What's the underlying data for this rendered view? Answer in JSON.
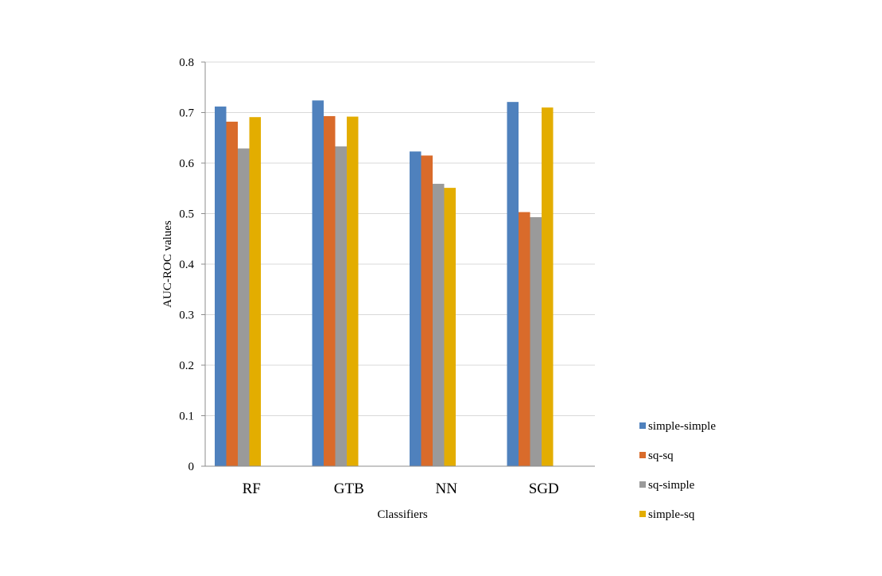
{
  "chart_data": {
    "type": "bar",
    "categories": [
      "RF",
      "GTB",
      "NN",
      "SGD"
    ],
    "series": [
      {
        "name": "simple-simple",
        "color": "#4f81bd",
        "values": [
          0.712,
          0.724,
          0.623,
          0.721
        ]
      },
      {
        "name": "sq-sq",
        "color": "#d96b2b",
        "values": [
          0.682,
          0.693,
          0.615,
          0.503
        ]
      },
      {
        "name": "sq-simple",
        "color": "#9a9a9a",
        "values": [
          0.629,
          0.633,
          0.559,
          0.493
        ]
      },
      {
        "name": "simple-sq",
        "color": "#e3ad00",
        "values": [
          0.691,
          0.692,
          0.551,
          0.71
        ]
      }
    ],
    "xlabel": "Classifiers",
    "ylabel": "AUC-ROC values",
    "ylim": [
      0,
      0.8
    ],
    "yticks": [
      "0",
      "0.1",
      "0.2",
      "0.3",
      "0.4",
      "0.5",
      "0.6",
      "0.7",
      "0.8"
    ],
    "grid": true,
    "legend_position": "right"
  }
}
